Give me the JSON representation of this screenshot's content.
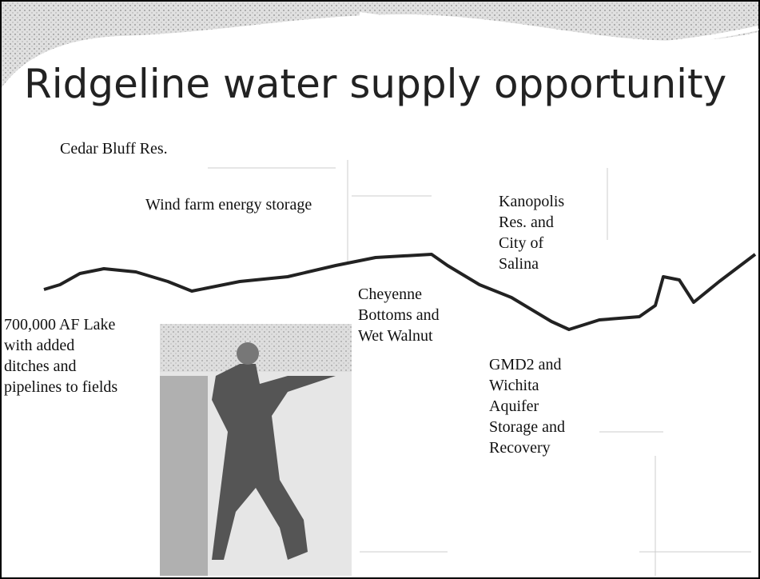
{
  "slide": {
    "title": "Ridgeline water supply opportunity",
    "labels": {
      "cedar_bluff": [
        "Cedar Bluff Res."
      ],
      "wind_farm": [
        "Wind farm energy storage"
      ],
      "kanopolis": [
        "Kanopolis",
        "Res. and",
        "City of",
        "Salina"
      ],
      "cheyenne": [
        "Cheyenne",
        "Bottoms and",
        "Wet Walnut"
      ],
      "lake": [
        "700,000 AF Lake",
        "with added",
        "ditches and",
        "pipelines to fields"
      ],
      "gmd2": [
        "GMD2 and",
        "Wichita",
        "Aquifer",
        "Storage and",
        "Recovery"
      ]
    }
  }
}
